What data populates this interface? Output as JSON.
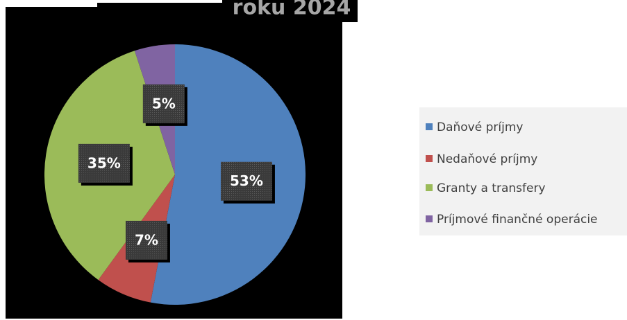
{
  "chart_data": {
    "type": "pie",
    "title": "roku 2024",
    "categories": [
      "Daňové príjmy",
      "Nedaňové príjmy",
      "Granty a transfery",
      "Príjmové finančné operácie"
    ],
    "values": [
      53,
      7,
      35,
      5
    ],
    "value_labels": [
      "53%",
      "7%",
      "35%",
      "5%"
    ],
    "colors": [
      "#4f81bd",
      "#c0504d",
      "#9bbb59",
      "#8064a2"
    ],
    "legend": "right"
  }
}
